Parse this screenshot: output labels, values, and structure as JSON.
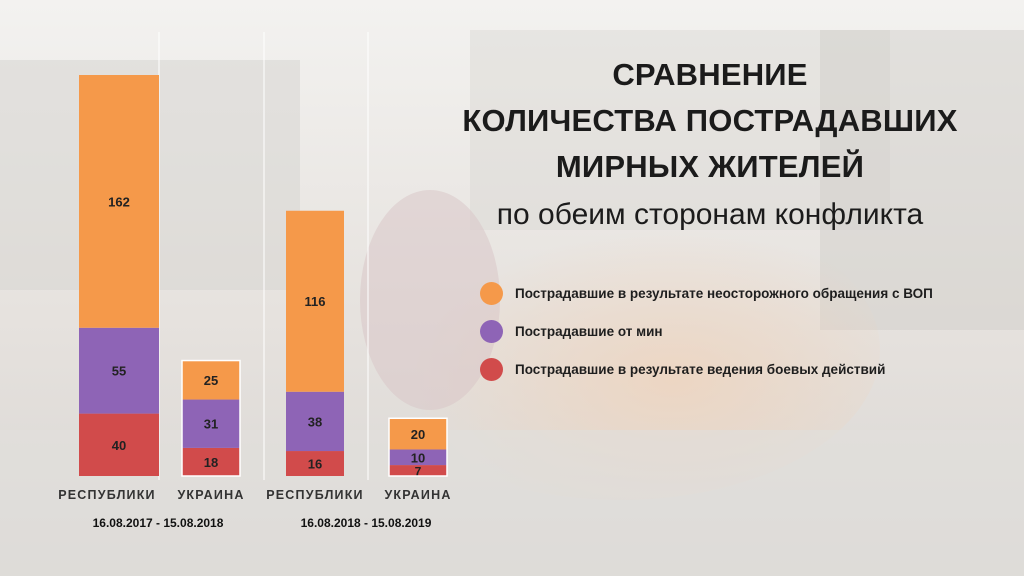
{
  "title": {
    "lines": [
      "СРАВНЕНИЕ",
      "КОЛИЧЕСТВА ПОСТРАДАВШИХ",
      "МИРНЫХ ЖИТЕЛЕЙ"
    ],
    "subtitle": "по обеим сторонам конфликта"
  },
  "legend": [
    {
      "label": "Пострадавшие в результате неосторожного обращения с ВОП",
      "color": "#f5994a"
    },
    {
      "label": "Пострадавшие от мин",
      "color": "#8e64b6"
    },
    {
      "label": "Пострадавшие в результате ведения боевых действий",
      "color": "#d14b4b"
    }
  ],
  "chart_data": {
    "type": "bar",
    "stacked": true,
    "categories": [
      "РЕСПУБЛИКИ",
      "УКРАИНА",
      "РЕСПУБЛИКИ",
      "УКРАИНА"
    ],
    "periods": [
      {
        "label": "16.08.2017 - 15.08.2018",
        "categories": [
          0,
          1
        ]
      },
      {
        "label": "16.08.2018 - 15.08.2019",
        "categories": [
          2,
          3
        ]
      }
    ],
    "series": [
      {
        "name": "Пострадавшие в результате ведения боевых действий",
        "color": "#d14b4b",
        "values": [
          40,
          18,
          16,
          7
        ]
      },
      {
        "name": "Пострадавшие от мин",
        "color": "#8e64b6",
        "values": [
          55,
          31,
          38,
          10
        ]
      },
      {
        "name": "Пострадавшие в результате неосторожного обращения с ВОП",
        "color": "#f5994a",
        "values": [
          162,
          25,
          116,
          20
        ]
      }
    ],
    "grid": false
  }
}
